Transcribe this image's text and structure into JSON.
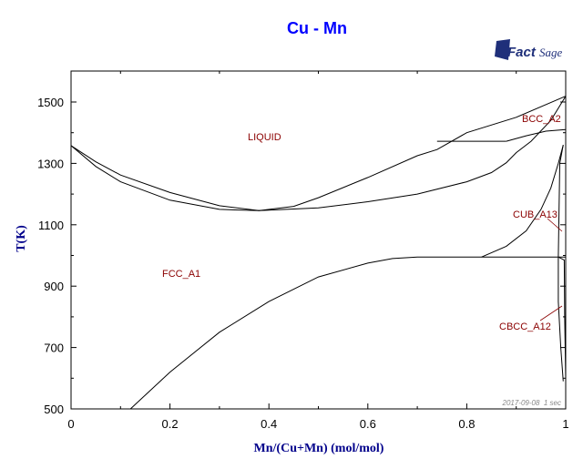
{
  "chart_data": {
    "type": "line",
    "title": "Cu - Mn",
    "xlabel": "Mn/(Cu+Mn) (mol/mol)",
    "ylabel": "T(K)",
    "xlim": [
      0,
      1
    ],
    "ylim": [
      500,
      1600
    ],
    "xticks": [
      "0",
      "0.2",
      "0.4",
      "0.6",
      "0.8",
      "1"
    ],
    "yticks": [
      "500",
      "700",
      "900",
      "1100",
      "1300",
      "1500"
    ],
    "grid": false,
    "logo": "FactSage",
    "timestamp": "2017-09-08  1 sec",
    "phase_labels": [
      "LIQUID",
      "FCC_A1",
      "BCC_A2",
      "CUB_A13",
      "CBCC_A12"
    ],
    "colors": {
      "title": "#0000ff",
      "axis_label": "#00008b",
      "phase_label": "#8b0000",
      "lines": "#000000"
    },
    "series": [
      {
        "points": [
          [
            0,
            1358
          ],
          [
            0.05,
            1305
          ],
          [
            0.1,
            1262
          ],
          [
            0.2,
            1205
          ],
          [
            0.3,
            1162
          ],
          [
            0.38,
            1146
          ],
          [
            0.45,
            1160
          ],
          [
            0.5,
            1188
          ],
          [
            0.6,
            1254
          ],
          [
            0.7,
            1325
          ],
          [
            0.74,
            1345
          ],
          [
            0.8,
            1400
          ],
          [
            0.9,
            1450
          ],
          [
            1,
            1519
          ]
        ]
      },
      {
        "points": [
          [
            0,
            1358
          ],
          [
            0.05,
            1290
          ],
          [
            0.1,
            1240
          ],
          [
            0.2,
            1180
          ],
          [
            0.3,
            1150
          ],
          [
            0.38,
            1146
          ],
          [
            0.5,
            1155
          ],
          [
            0.6,
            1175
          ],
          [
            0.7,
            1200
          ],
          [
            0.8,
            1240
          ],
          [
            0.85,
            1270
          ],
          [
            0.88,
            1302
          ],
          [
            0.9,
            1335
          ],
          [
            0.93,
            1372
          ],
          [
            0.97,
            1440
          ],
          [
            1,
            1519
          ]
        ]
      },
      {
        "points": [
          [
            0.74,
            1372
          ],
          [
            0.88,
            1372
          ]
        ]
      },
      {
        "points": [
          [
            0.88,
            1372
          ],
          [
            0.92,
            1390
          ],
          [
            0.96,
            1405
          ],
          [
            1,
            1410
          ]
        ]
      },
      {
        "points": [
          [
            0.12,
            500
          ],
          [
            0.2,
            620
          ],
          [
            0.3,
            750
          ],
          [
            0.4,
            850
          ],
          [
            0.5,
            930
          ],
          [
            0.6,
            975
          ],
          [
            0.65,
            990
          ],
          [
            0.7,
            995
          ],
          [
            0.85,
            995
          ],
          [
            1,
            995
          ]
        ]
      },
      {
        "points": [
          [
            0.83,
            995
          ],
          [
            0.88,
            1030
          ],
          [
            0.92,
            1080
          ],
          [
            0.95,
            1150
          ],
          [
            0.97,
            1220
          ],
          [
            0.985,
            1300
          ],
          [
            0.995,
            1360
          ]
        ]
      },
      {
        "points": [
          [
            0.995,
            1360
          ],
          [
            0.988,
            1300
          ],
          [
            0.985,
            995
          ],
          [
            0.985,
            850
          ],
          [
            0.99,
            700
          ],
          [
            0.995,
            590
          ]
        ]
      },
      {
        "points": [
          [
            0.985,
            995
          ],
          [
            0.997,
            985
          ],
          [
            0.998,
            800
          ],
          [
            1,
            600
          ]
        ]
      }
    ]
  }
}
